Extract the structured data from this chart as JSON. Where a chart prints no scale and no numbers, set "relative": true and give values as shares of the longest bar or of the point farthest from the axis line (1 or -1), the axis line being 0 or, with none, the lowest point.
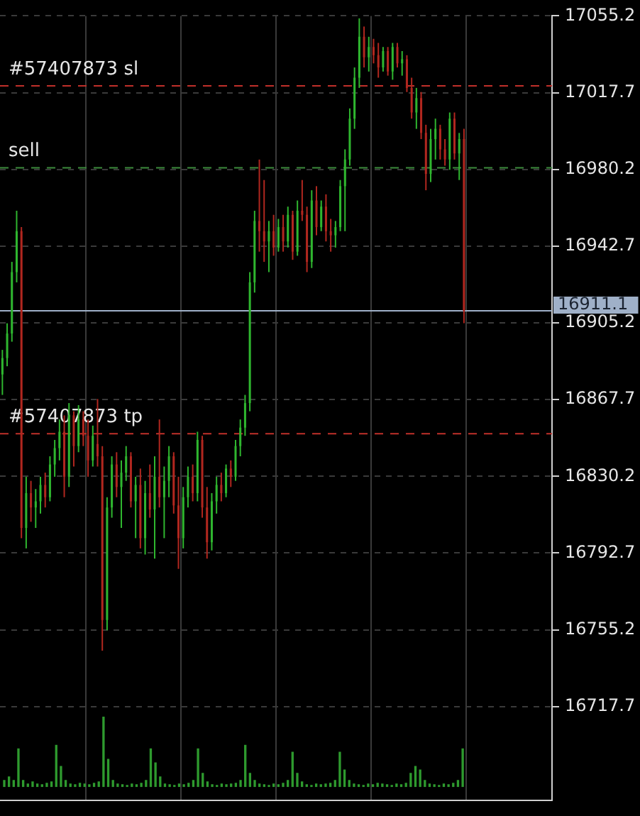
{
  "chart_data": [
    {
      "type": "candlestick",
      "categories": [
        null,
        null,
        null,
        null,
        null,
        null,
        null,
        null,
        null,
        null,
        null,
        null,
        null,
        null,
        null,
        null,
        null,
        null,
        null,
        null,
        null,
        null,
        null,
        null,
        null,
        null,
        null,
        null,
        null,
        null,
        null,
        null,
        null,
        null,
        null,
        null,
        null,
        null,
        null,
        null,
        null,
        null,
        null,
        null,
        null,
        null,
        null,
        null,
        null,
        null,
        null,
        null,
        null,
        null,
        null,
        null,
        null,
        null,
        null,
        null,
        null,
        null,
        null,
        null,
        null,
        null,
        null,
        null,
        null,
        null,
        null,
        null,
        null,
        null,
        null,
        null,
        null,
        null,
        null,
        null,
        null,
        null,
        null,
        null,
        null,
        null,
        null,
        null,
        null,
        null,
        null,
        null,
        null,
        null,
        null,
        null,
        null,
        null,
        null,
        null,
        null,
        null,
        null,
        null,
        null,
        null,
        null,
        null,
        null,
        null,
        null,
        null,
        null,
        null,
        null,
        null
      ],
      "ohlc": [
        [
          16880,
          16892,
          16870,
          16888
        ],
        [
          16888,
          16905,
          16884,
          16900
        ],
        [
          16900,
          16935,
          16896,
          16930
        ],
        [
          16930,
          16960,
          16925,
          16950
        ],
        [
          16950,
          16952,
          16800,
          16805
        ],
        [
          16805,
          16830,
          16795,
          16822
        ],
        [
          16822,
          16828,
          16808,
          16815
        ],
        [
          16815,
          16824,
          16805,
          16818
        ],
        [
          16818,
          16830,
          16812,
          16826
        ],
        [
          16826,
          16832,
          16815,
          16820
        ],
        [
          16820,
          16840,
          16818,
          16836
        ],
        [
          16836,
          16848,
          16830,
          16844
        ],
        [
          16844,
          16858,
          16838,
          16852
        ],
        [
          16852,
          16860,
          16820,
          16830
        ],
        [
          16830,
          16866,
          16825,
          16860
        ],
        [
          16860,
          16862,
          16835,
          16845
        ],
        [
          16845,
          16865,
          16842,
          16858
        ],
        [
          16858,
          16862,
          16845,
          16850
        ],
        [
          16850,
          16858,
          16830,
          16838
        ],
        [
          16838,
          16855,
          16835,
          16850
        ],
        [
          16846,
          16868,
          16835,
          16840
        ],
        [
          16840,
          16845,
          16745,
          16760
        ],
        [
          16760,
          16820,
          16755,
          16815
        ],
        [
          16815,
          16840,
          16810,
          16836
        ],
        [
          16836,
          16842,
          16820,
          16825
        ],
        [
          16825,
          16838,
          16805,
          16832
        ],
        [
          16832,
          16845,
          16828,
          16840
        ],
        [
          16840,
          16842,
          16815,
          16818
        ],
        [
          16818,
          16830,
          16800,
          16826
        ],
        [
          16826,
          16834,
          16795,
          16800
        ],
        [
          16800,
          16828,
          16792,
          16822
        ],
        [
          16822,
          16836,
          16810,
          16814
        ],
        [
          16814,
          16840,
          16790,
          16830
        ],
        [
          16830,
          16858,
          16815,
          16820
        ],
        [
          16820,
          16835,
          16800,
          16828
        ],
        [
          16828,
          16845,
          16820,
          16840
        ],
        [
          16840,
          16842,
          16812,
          16816
        ],
        [
          16816,
          16830,
          16785,
          16800
        ],
        [
          16800,
          16825,
          16795,
          16820
        ],
        [
          16820,
          16835,
          16815,
          16830
        ],
        [
          16830,
          16836,
          16818,
          16822
        ],
        [
          16822,
          16852,
          16818,
          16848
        ],
        [
          16848,
          16850,
          16810,
          16815
        ],
        [
          16815,
          16825,
          16790,
          16798
        ],
        [
          16798,
          16822,
          16794,
          16818
        ],
        [
          16818,
          16830,
          16812,
          16826
        ],
        [
          16826,
          16832,
          16818,
          16822
        ],
        [
          16822,
          16836,
          16820,
          16834
        ],
        [
          16834,
          16838,
          16825,
          16830
        ],
        [
          16830,
          16848,
          16828,
          16845
        ],
        [
          16845,
          16858,
          16840,
          16854
        ],
        [
          16854,
          16870,
          16850,
          16866
        ],
        [
          16866,
          16930,
          16862,
          16925
        ],
        [
          16925,
          16960,
          16920,
          16955
        ],
        [
          16955,
          16985,
          16940,
          16950
        ],
        [
          16950,
          16975,
          16935,
          16945
        ],
        [
          16945,
          16955,
          16930,
          16950
        ],
        [
          16950,
          16958,
          16938,
          16942
        ],
        [
          16942,
          16956,
          16940,
          16952
        ],
        [
          16952,
          16958,
          16940,
          16945
        ],
        [
          16945,
          16962,
          16942,
          16958
        ],
        [
          16958,
          16960,
          16936,
          16940
        ],
        [
          16940,
          16965,
          16938,
          16960
        ],
        [
          16960,
          16975,
          16955,
          16958
        ],
        [
          16958,
          16962,
          16930,
          16935
        ],
        [
          16935,
          16970,
          16932,
          16965
        ],
        [
          16965,
          16972,
          16948,
          16952
        ],
        [
          16952,
          16965,
          16950,
          16962
        ],
        [
          16962,
          16968,
          16945,
          16950
        ],
        [
          16950,
          16956,
          16940,
          16948
        ],
        [
          16948,
          16955,
          16942,
          16952
        ],
        [
          16952,
          16975,
          16950,
          16972
        ],
        [
          16972,
          16990,
          16950,
          16985
        ],
        [
          16985,
          17010,
          16982,
          17005
        ],
        [
          17005,
          17030,
          17000,
          17025
        ],
        [
          17025,
          17054,
          17020,
          17045
        ],
        [
          17045,
          17050,
          17030,
          17035
        ],
        [
          17035,
          17045,
          17028,
          17040
        ],
        [
          17040,
          17044,
          17032,
          17036
        ],
        [
          17036,
          17042,
          17025,
          17030
        ],
        [
          17030,
          17040,
          17028,
          17038
        ],
        [
          17038,
          17040,
          17026,
          17028
        ],
        [
          17028,
          17042,
          17024,
          17040
        ],
        [
          17040,
          17042,
          17030,
          17032
        ],
        [
          17032,
          17038,
          17026,
          17034
        ],
        [
          17034,
          17036,
          17018,
          17020
        ],
        [
          17020,
          17025,
          17005,
          17008
        ],
        [
          17008,
          17020,
          17000,
          17015
        ],
        [
          17015,
          17018,
          16995,
          16998
        ],
        [
          16998,
          17002,
          16970,
          16978
        ],
        [
          16978,
          17000,
          16974,
          16995
        ],
        [
          16995,
          17005,
          16985,
          17000
        ],
        [
          17000,
          17002,
          16985,
          16990
        ],
        [
          16990,
          16995,
          16982,
          16985
        ],
        [
          16985,
          17008,
          16980,
          17005
        ],
        [
          17005,
          17008,
          16985,
          16988
        ],
        [
          16988,
          16998,
          16975,
          16995
        ],
        [
          16995,
          17000,
          16905,
          16911.1
        ],
        null,
        null,
        null,
        null,
        null,
        null,
        null,
        null,
        null,
        null,
        null,
        null,
        null,
        null,
        null,
        null,
        null,
        null
      ],
      "colors": [
        "#2fb62f",
        "#2fb62f",
        "#2fb62f",
        "#2fb62f",
        "#b1271f",
        "#2fb62f",
        "#b1271f",
        "#2fb62f",
        "#2fb62f",
        "#b1271f",
        "#2fb62f",
        "#2fb62f",
        "#2fb62f",
        "#b1271f",
        "#2fb62f",
        "#b1271f",
        "#2fb62f",
        "#b1271f",
        "#b1271f",
        "#2fb62f",
        "#b1271f",
        "#b1271f",
        "#2fb62f",
        "#2fb62f",
        "#b1271f",
        "#2fb62f",
        "#2fb62f",
        "#b1271f",
        "#2fb62f",
        "#b1271f",
        "#2fb62f",
        "#b1271f",
        "#2fb62f",
        "#b1271f",
        "#2fb62f",
        "#2fb62f",
        "#b1271f",
        "#b1271f",
        "#2fb62f",
        "#2fb62f",
        "#b1271f",
        "#2fb62f",
        "#b1271f",
        "#b1271f",
        "#2fb62f",
        "#2fb62f",
        "#b1271f",
        "#2fb62f",
        "#b1271f",
        "#2fb62f",
        "#2fb62f",
        "#2fb62f",
        "#2fb62f",
        "#2fb62f",
        "#b1271f",
        "#b1271f",
        "#2fb62f",
        "#b1271f",
        "#2fb62f",
        "#b1271f",
        "#2fb62f",
        "#b1271f",
        "#2fb62f",
        "#b1271f",
        "#b1271f",
        "#2fb62f",
        "#b1271f",
        "#2fb62f",
        "#b1271f",
        "#b1271f",
        "#2fb62f",
        "#2fb62f",
        "#2fb62f",
        "#2fb62f",
        "#2fb62f",
        "#2fb62f",
        "#b1271f",
        "#2fb62f",
        "#b1271f",
        "#b1271f",
        "#2fb62f",
        "#b1271f",
        "#2fb62f",
        "#b1271f",
        "#2fb62f",
        "#b1271f",
        "#b1271f",
        "#2fb62f",
        "#b1271f",
        "#b1271f",
        "#2fb62f",
        "#2fb62f",
        "#b1271f",
        "#b1271f",
        "#2fb62f",
        "#b1271f",
        "#2fb62f",
        "#b1271f",
        null,
        null,
        null,
        null,
        null,
        null,
        null,
        null,
        null,
        null,
        null,
        null,
        null,
        null,
        null,
        null,
        null,
        null
      ],
      "ylim": [
        16672,
        17055.2
      ],
      "yticks": [
        16717.7,
        16755.2,
        16792.7,
        16830.2,
        16867.7,
        16905.2,
        16942.7,
        16980.2,
        17017.7,
        17055.2
      ],
      "grid": true,
      "tick_labels": "y",
      "ref_lines": [
        {
          "axis": "y",
          "value": 17021,
          "label": "#57407873 sl",
          "color": "#c0302a",
          "line_style": "dashed"
        },
        {
          "axis": "y",
          "value": 16981,
          "label": "sell",
          "color": "#3c8c3c",
          "line_style": "dashed"
        },
        {
          "axis": "y",
          "value": 16851,
          "label": "#57407873 tp",
          "color": "#c0302a",
          "line_style": "dashed"
        },
        {
          "axis": "y",
          "value": 16911.1,
          "label": "16911.1",
          "color": "#9fb0c8",
          "line_style": "solid"
        }
      ]
    },
    {
      "type": "bar",
      "relative": true,
      "color": "#2e9a2e",
      "categories": [
        null,
        null,
        null,
        null,
        null,
        null,
        null,
        null,
        null,
        null,
        null,
        null,
        null,
        null,
        null,
        null,
        null,
        null,
        null,
        null,
        null,
        null,
        null,
        null,
        null,
        null,
        null,
        null,
        null,
        null,
        null,
        null,
        null,
        null,
        null,
        null,
        null,
        null,
        null,
        null,
        null,
        null,
        null,
        null,
        null,
        null,
        null,
        null,
        null,
        null,
        null,
        null,
        null,
        null,
        null,
        null,
        null,
        null,
        null,
        null,
        null,
        null,
        null,
        null,
        null,
        null,
        null,
        null,
        null,
        null,
        null,
        null,
        null,
        null,
        null,
        null,
        null,
        null,
        null,
        null,
        null,
        null,
        null,
        null,
        null,
        null,
        null,
        null,
        null,
        null,
        null,
        null,
        null,
        null,
        null,
        null,
        null,
        null,
        null,
        null,
        null,
        null,
        null,
        null,
        null,
        null,
        null,
        null,
        null,
        null,
        null,
        null,
        null,
        null,
        null,
        null
      ],
      "values": [
        0.1,
        0.15,
        0.1,
        0.55,
        0.1,
        0.05,
        0.08,
        0.05,
        0.04,
        0.06,
        0.08,
        0.6,
        0.3,
        0.1,
        0.05,
        0.04,
        0.06,
        0.05,
        0.04,
        0.06,
        0.08,
        1,
        0.4,
        0.1,
        0.05,
        0.04,
        0.03,
        0.05,
        0.04,
        0.06,
        0.1,
        0.55,
        0.35,
        0.15,
        0.05,
        0.04,
        0.03,
        0.05,
        0.04,
        0.06,
        0.1,
        0.55,
        0.2,
        0.08,
        0.04,
        0.03,
        0.05,
        0.04,
        0.05,
        0.06,
        0.1,
        0.6,
        0.2,
        0.1,
        0.05,
        0.04,
        0.03,
        0.05,
        0.04,
        0.06,
        0.1,
        0.5,
        0.2,
        0.08,
        0.04,
        0.03,
        0.05,
        0.04,
        0.05,
        0.06,
        0.1,
        0.5,
        0.25,
        0.1,
        0.05,
        0.04,
        0.03,
        0.05,
        0.04,
        0.06,
        0.05,
        0.04,
        0.03,
        0.05,
        0.04,
        0.06,
        0.2,
        0.3,
        0.25,
        0.1,
        0.05,
        0.04,
        0.03,
        0.05,
        0.04,
        0.06,
        0.1,
        0.55,
        null,
        null,
        null,
        null,
        null,
        null,
        null,
        null,
        null,
        null,
        null,
        null,
        null,
        null,
        null,
        null,
        null,
        null
      ]
    }
  ]
}
